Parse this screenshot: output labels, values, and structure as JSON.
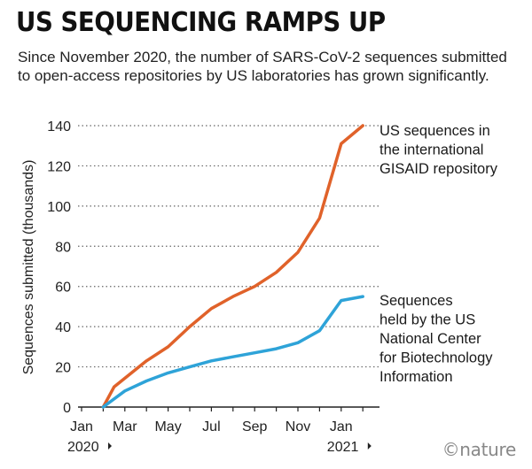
{
  "header": {
    "title": "US SEQUENCING RAMPS UP",
    "subtitle": "Since November 2020, the number of SARS-CoV-2 sequences submitted to open-access repositories by US laboratories has grown significantly."
  },
  "chart_data": {
    "type": "line",
    "title": "US SEQUENCING RAMPS UP",
    "xlabel": "",
    "ylabel": "Sequences submitted (thousands)",
    "ylim": [
      0,
      140
    ],
    "yticks": [
      0,
      20,
      40,
      60,
      80,
      100,
      120,
      140
    ],
    "grid": "horizontal dotted",
    "x_range": [
      0,
      13.3
    ],
    "x_ticks": [
      {
        "x": 0,
        "label": "Jan",
        "year": "2020"
      },
      {
        "x": 2,
        "label": "Mar"
      },
      {
        "x": 4,
        "label": "May"
      },
      {
        "x": 6,
        "label": "Jul"
      },
      {
        "x": 8,
        "label": "Sep"
      },
      {
        "x": 10,
        "label": "Nov"
      },
      {
        "x": 12,
        "label": "Jan",
        "year": "2021"
      }
    ],
    "series": [
      {
        "name": "US sequences in the international GISAID repository",
        "label_lines": [
          "US sequences in",
          "the international",
          "GISAID repository"
        ],
        "color": "#e0622a",
        "x": [
          1,
          1.5,
          3,
          4,
          5,
          6,
          7,
          8,
          9,
          10,
          11,
          12,
          13
        ],
        "y": [
          0,
          10,
          23,
          30,
          40,
          49,
          55,
          60,
          67,
          77,
          94,
          131,
          140
        ]
      },
      {
        "name": "Sequences held by the US National Center for Biotechnology Information",
        "label_lines": [
          "Sequences",
          "held by the US",
          "National Center",
          "for Biotechnology",
          "Information"
        ],
        "color": "#2ea3d8",
        "x": [
          1,
          2,
          3,
          4,
          5,
          6,
          7,
          8,
          9,
          10,
          11,
          12,
          13
        ],
        "y": [
          0,
          8,
          13,
          17,
          20,
          23,
          25,
          27,
          29,
          32,
          38,
          53,
          55
        ]
      }
    ]
  },
  "footer": {
    "logo": "©nature"
  }
}
